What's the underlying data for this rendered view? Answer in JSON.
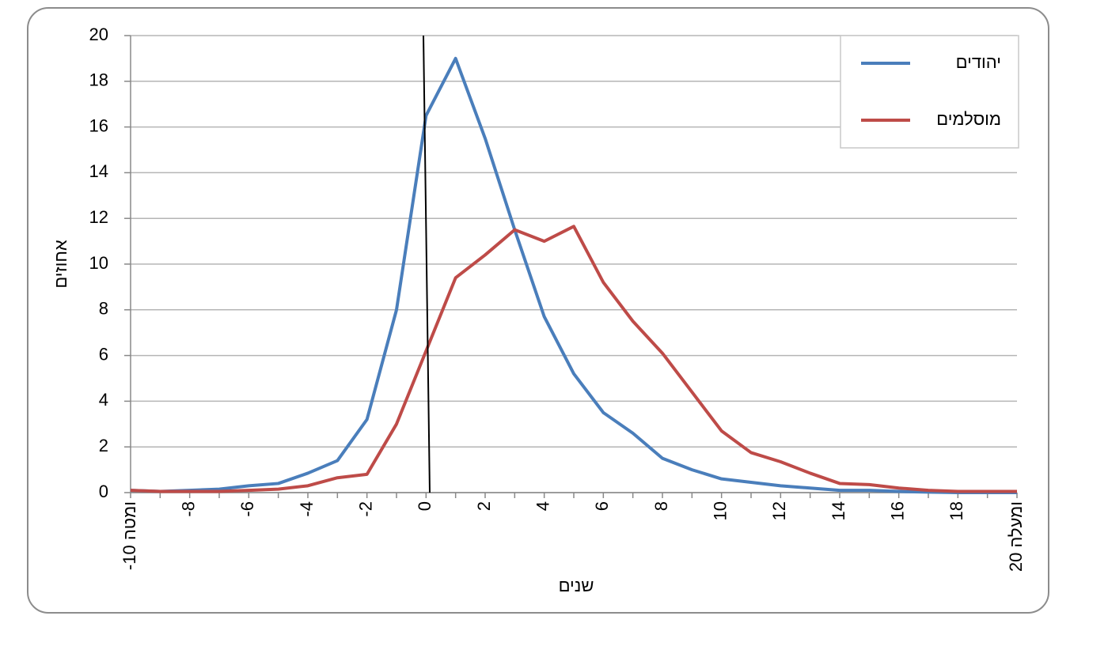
{
  "chart_data": {
    "type": "line",
    "x_label": "שנים",
    "y_label": "אחוזים",
    "categories": [
      "-10 ומטה",
      null,
      "-8",
      null,
      "-6",
      null,
      "-4",
      null,
      "-2",
      null,
      "0",
      null,
      "2",
      null,
      "4",
      null,
      "6",
      null,
      "8",
      null,
      "10",
      null,
      "12",
      null,
      "14",
      null,
      "16",
      null,
      "18",
      null,
      "20 ומעלה"
    ],
    "series": [
      {
        "name": "יהודים",
        "color": "#4a7ebb",
        "values": [
          0.1,
          0.05,
          0.1,
          0.15,
          0.3,
          0.4,
          0.85,
          1.4,
          3.2,
          8,
          16.5,
          19,
          15.5,
          11.5,
          7.7,
          5.2,
          3.5,
          2.6,
          1.5,
          1.0,
          0.6,
          0.45,
          0.3,
          0.2,
          0.1,
          0.1,
          0.05,
          0.02,
          0,
          0,
          0
        ]
      },
      {
        "name": "מוסלמים",
        "color": "#be4b48",
        "values": [
          0.1,
          0.05,
          0.05,
          0.05,
          0.1,
          0.15,
          0.3,
          0.65,
          0.8,
          3,
          6.2,
          9.4,
          10.4,
          11.5,
          11,
          11.65,
          9.2,
          7.5,
          6.1,
          4.4,
          2.7,
          1.75,
          1.35,
          0.85,
          0.4,
          0.35,
          0.2,
          0.1,
          0.05,
          0.05,
          0.05
        ]
      }
    ],
    "ylim": [
      0,
      20
    ],
    "yticks": [
      0,
      2,
      4,
      6,
      8,
      10,
      12,
      14,
      16,
      18,
      20
    ],
    "grid": true,
    "legend": "top-right"
  }
}
